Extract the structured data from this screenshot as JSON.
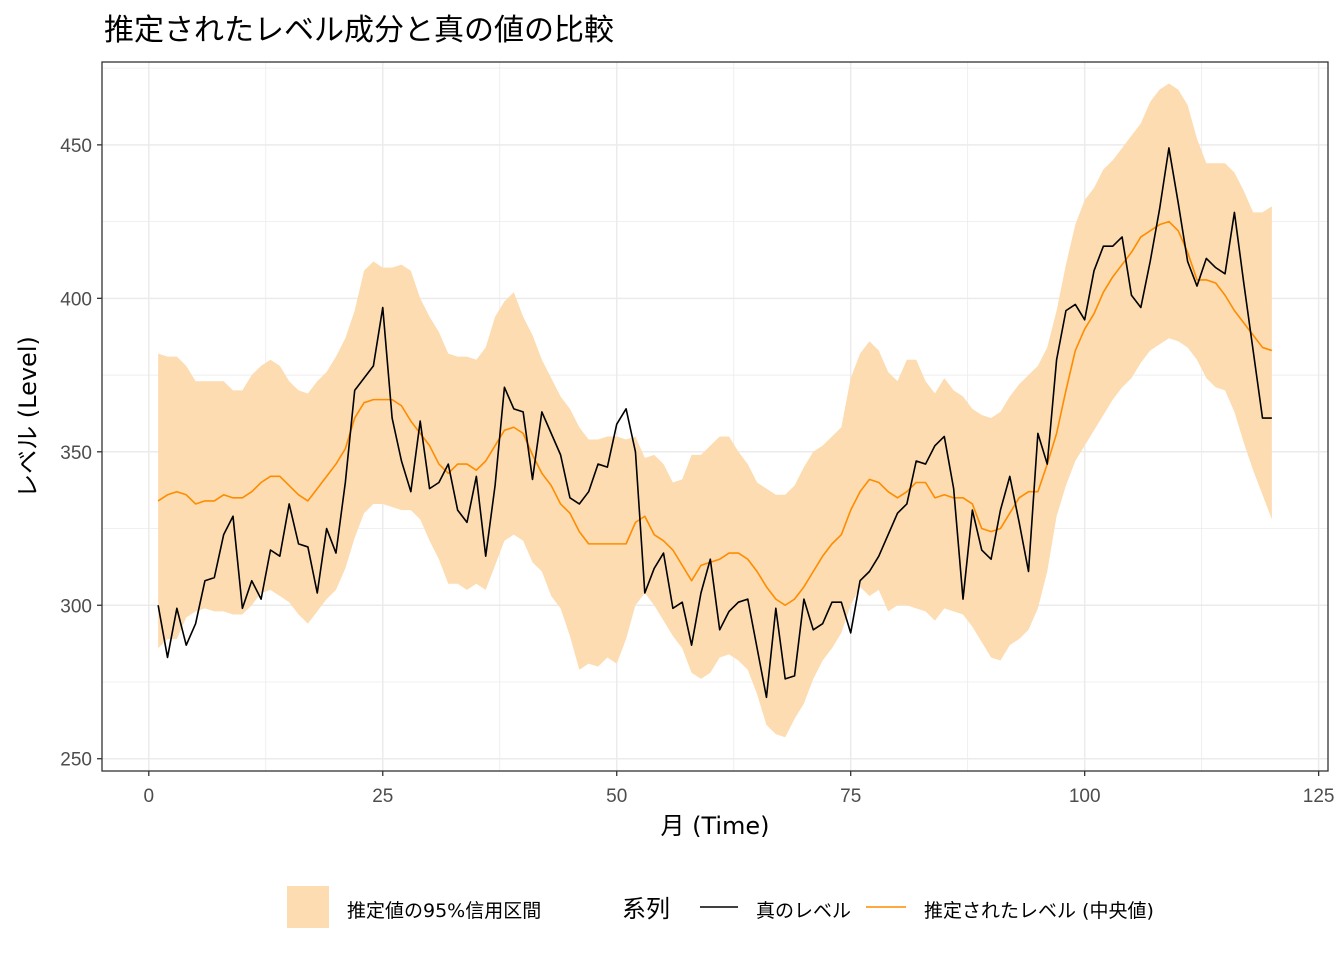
{
  "chart_data": {
    "type": "line",
    "title": "推定されたレベル成分と真の値の比較",
    "xlabel": "月 (Time)",
    "ylabel": "レベル (Level)",
    "xlim": [
      -5,
      126
    ],
    "ylim": [
      246,
      477
    ],
    "x_ticks": [
      0,
      25,
      50,
      75,
      100,
      125
    ],
    "y_ticks": [
      250,
      300,
      350,
      400,
      450
    ],
    "x_tick_labels": [
      "0",
      "25",
      "50",
      "75",
      "100",
      "125"
    ],
    "y_tick_labels": [
      "250",
      "300",
      "350",
      "400",
      "450"
    ],
    "grid": true,
    "legend_position": "bottom",
    "legend": {
      "band_label": "推定値の95%信用区間",
      "series_title": "系列",
      "true_label": "真のレベル",
      "est_label": "推定されたレベル (中央値)"
    },
    "colors": {
      "true_line": "#000000",
      "est_line": "#ff8c00",
      "band": "#fcdcb0",
      "grid": "#ebebeb",
      "panel_border": "#333333"
    },
    "x": [
      1,
      2,
      3,
      4,
      5,
      6,
      7,
      8,
      9,
      10,
      11,
      12,
      13,
      14,
      15,
      16,
      17,
      18,
      19,
      20,
      21,
      22,
      23,
      24,
      25,
      26,
      27,
      28,
      29,
      30,
      31,
      32,
      33,
      34,
      35,
      36,
      37,
      38,
      39,
      40,
      41,
      42,
      43,
      44,
      45,
      46,
      47,
      48,
      49,
      50,
      51,
      52,
      53,
      54,
      55,
      56,
      57,
      58,
      59,
      60,
      61,
      62,
      63,
      64,
      65,
      66,
      67,
      68,
      69,
      70,
      71,
      72,
      73,
      74,
      75,
      76,
      77,
      78,
      79,
      80,
      81,
      82,
      83,
      84,
      85,
      86,
      87,
      88,
      89,
      90,
      91,
      92,
      93,
      94,
      95,
      96,
      97,
      98,
      99,
      100,
      101,
      102,
      103,
      104,
      105,
      106,
      107,
      108,
      109,
      110,
      111,
      112,
      113,
      114,
      115,
      116,
      117,
      118,
      119,
      120
    ],
    "series": [
      {
        "name": "真のレベル",
        "values": [
          300,
          283,
          299,
          287,
          294,
          308,
          309,
          323,
          329,
          299,
          308,
          302,
          318,
          316,
          333,
          320,
          319,
          304,
          325,
          317,
          340,
          370,
          374,
          378,
          397,
          361,
          347,
          337,
          360,
          338,
          340,
          346,
          331,
          327,
          342,
          316,
          339,
          371,
          364,
          363,
          341,
          363,
          356,
          349,
          335,
          333,
          337,
          346,
          345,
          359,
          364,
          350,
          304,
          312,
          317,
          299,
          301,
          287,
          304,
          315,
          292,
          298,
          301,
          302,
          286,
          270,
          299,
          276,
          277,
          302,
          292,
          294,
          301,
          301,
          291,
          308,
          311,
          316,
          323,
          330,
          333,
          347,
          346,
          352,
          355,
          338,
          302,
          331,
          318,
          315,
          331,
          342,
          327,
          311,
          356,
          346,
          380,
          396,
          398,
          393,
          409,
          417,
          417,
          420,
          401,
          397,
          412,
          429,
          449,
          431,
          412,
          404,
          413,
          410,
          408,
          428,
          405,
          383,
          361,
          361
        ],
        "style": "line"
      },
      {
        "name": "推定されたレベル (中央値)",
        "values": [
          334,
          336,
          337,
          336,
          333,
          334,
          334,
          336,
          335,
          335,
          337,
          340,
          342,
          342,
          339,
          336,
          334,
          338,
          342,
          346,
          351,
          361,
          366,
          367,
          367,
          367,
          365,
          360,
          356,
          352,
          346,
          343,
          346,
          346,
          344,
          347,
          352,
          357,
          358,
          356,
          349,
          343,
          339,
          333,
          330,
          324,
          320,
          320,
          320,
          320,
          320,
          327,
          329,
          323,
          321,
          318,
          313,
          308,
          313,
          314,
          315,
          317,
          317,
          315,
          311,
          306,
          302,
          300,
          302,
          306,
          311,
          316,
          320,
          323,
          331,
          337,
          341,
          340,
          337,
          335,
          337,
          340,
          340,
          335,
          336,
          335,
          335,
          333,
          325,
          324,
          325,
          330,
          335,
          337,
          337,
          346,
          356,
          370,
          383,
          390,
          395,
          402,
          407,
          411,
          415,
          420,
          422,
          424,
          425,
          422,
          415,
          406,
          406,
          405,
          401,
          396,
          392,
          388,
          384,
          383
        ],
        "style": "line"
      }
    ],
    "band": {
      "name": "推定値の95%信用区間",
      "upper": [
        382,
        381,
        381,
        378,
        373,
        373,
        373,
        373,
        370,
        370,
        375,
        378,
        380,
        378,
        373,
        370,
        369,
        373,
        376,
        381,
        387,
        396,
        409,
        412,
        410,
        410,
        411,
        409,
        400,
        394,
        389,
        382,
        381,
        381,
        380,
        384,
        394,
        399,
        402,
        394,
        388,
        380,
        374,
        368,
        364,
        358,
        354,
        354,
        355,
        355,
        354,
        355,
        348,
        349,
        346,
        340,
        341,
        349,
        349,
        352,
        355,
        355,
        350,
        346,
        340,
        338,
        336,
        336,
        339,
        345,
        350,
        352,
        355,
        358,
        374,
        382,
        386,
        383,
        376,
        373,
        380,
        380,
        373,
        369,
        374,
        370,
        368,
        364,
        362,
        361,
        363,
        368,
        372,
        375,
        378,
        384,
        396,
        411,
        424,
        432,
        436,
        442,
        445,
        449,
        453,
        457,
        464,
        468,
        470,
        468,
        463,
        452,
        444,
        444,
        444,
        441,
        435,
        428,
        428,
        430
      ],
      "lower": [
        286,
        289,
        289,
        296,
        298,
        299,
        298,
        298,
        297,
        297,
        300,
        304,
        305,
        303,
        301,
        297,
        294,
        298,
        302,
        305,
        312,
        322,
        330,
        333,
        333,
        332,
        331,
        331,
        328,
        321,
        315,
        307,
        307,
        305,
        307,
        305,
        313,
        321,
        323,
        321,
        314,
        311,
        303,
        299,
        290,
        279,
        281,
        280,
        283,
        281,
        289,
        300,
        304,
        300,
        295,
        290,
        286,
        278,
        276,
        278,
        283,
        284,
        282,
        279,
        271,
        261,
        258,
        257,
        263,
        268,
        276,
        282,
        286,
        291,
        300,
        306,
        303,
        305,
        298,
        300,
        300,
        299,
        298,
        295,
        299,
        298,
        297,
        293,
        288,
        283,
        282,
        287,
        289,
        292,
        299,
        311,
        329,
        339,
        347,
        352,
        357,
        362,
        367,
        371,
        374,
        379,
        383,
        385,
        387,
        386,
        384,
        380,
        374,
        371,
        370,
        363,
        353,
        344,
        336,
        328
      ]
    }
  }
}
